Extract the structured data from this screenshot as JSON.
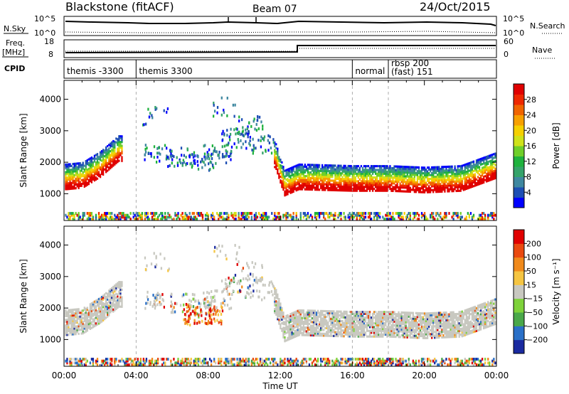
{
  "header": {
    "station": "Blackstone (fitACF)",
    "beam": "Beam 07",
    "date": "24/Oct/2015"
  },
  "top_panels": {
    "nsky_label": "N.Sky",
    "nsky_ticks": [
      "10^5",
      "10^0"
    ],
    "nsearch_label": "N.Search",
    "freq_label_top": "Freq.",
    "freq_label_bottom": "[MHz]",
    "freq_ticks": [
      "18",
      "8"
    ],
    "nave_label": "Nave",
    "nave_ticks": [
      "60",
      "0"
    ],
    "cpid_label": "CPID",
    "cpid_entries": [
      {
        "line1": "themis -3300",
        "line2": "",
        "start": 0.0
      },
      {
        "line1": "themis 3300",
        "line2": "",
        "start": 4.0
      },
      {
        "line1": "normal",
        "line2": "",
        "start": 16.0
      },
      {
        "line1": "rbsp 200",
        "line2": "(fast) 151",
        "start": 18.0
      }
    ]
  },
  "chart_data": [
    {
      "type": "heatmap",
      "name": "power",
      "ylabel": "Slant Range [km]",
      "yticks": [
        1000,
        2000,
        3000,
        4000
      ],
      "ylim": [
        150,
        4600
      ],
      "xlim": [
        0,
        24
      ],
      "colorbar_label": "Power [dB]",
      "colorbar_ticks": [
        "28",
        "24",
        "20",
        "16",
        "12",
        "8",
        "4"
      ],
      "colorbar_colors": [
        "#0000ff",
        "#1e4fb4",
        "#3f88a0",
        "#35a36a",
        "#1fb23e",
        "#6fcf2a",
        "#cfe21a",
        "#f5d000",
        "#f7a000",
        "#f06400",
        "#ee2800",
        "#e00000"
      ],
      "band": [
        {
          "t": 0.1,
          "r": 1300
        },
        {
          "t": 1.0,
          "r": 1350
        },
        {
          "t": 2.0,
          "r": 1700
        },
        {
          "t": 3.0,
          "r": 2200
        },
        {
          "t": 11.7,
          "r": 2000
        },
        {
          "t": 12.2,
          "r": 1100
        },
        {
          "t": 13.0,
          "r": 1300
        },
        {
          "t": 16.0,
          "r": 1250
        },
        {
          "t": 18.0,
          "r": 1250
        },
        {
          "t": 20.0,
          "r": 1200
        },
        {
          "t": 22.0,
          "r": 1250
        },
        {
          "t": 23.9,
          "r": 1650
        }
      ]
    },
    {
      "type": "heatmap",
      "name": "velocity",
      "ylabel": "Slant Range [km]",
      "yticks": [
        1000,
        2000,
        3000,
        4000
      ],
      "ylim": [
        150,
        4600
      ],
      "xlim": [
        0,
        24
      ],
      "colorbar_label": "Velocity [m s⁻¹]",
      "colorbar_ticks": [
        "200",
        "100",
        "50",
        "15",
        "−15",
        "−50",
        "−100",
        "−200"
      ],
      "colorbar_colors": [
        "#1a2aa0",
        "#2a70c8",
        "#4aa84a",
        "#7ed23a",
        "#c8c8c0",
        "#f5c542",
        "#f08a1c",
        "#ea4a10",
        "#e00000"
      ],
      "xticks": [
        "00:00",
        "04:00",
        "08:00",
        "12:00",
        "16:00",
        "20:00",
        "00:00"
      ],
      "xlabel": "Time UT"
    }
  ]
}
